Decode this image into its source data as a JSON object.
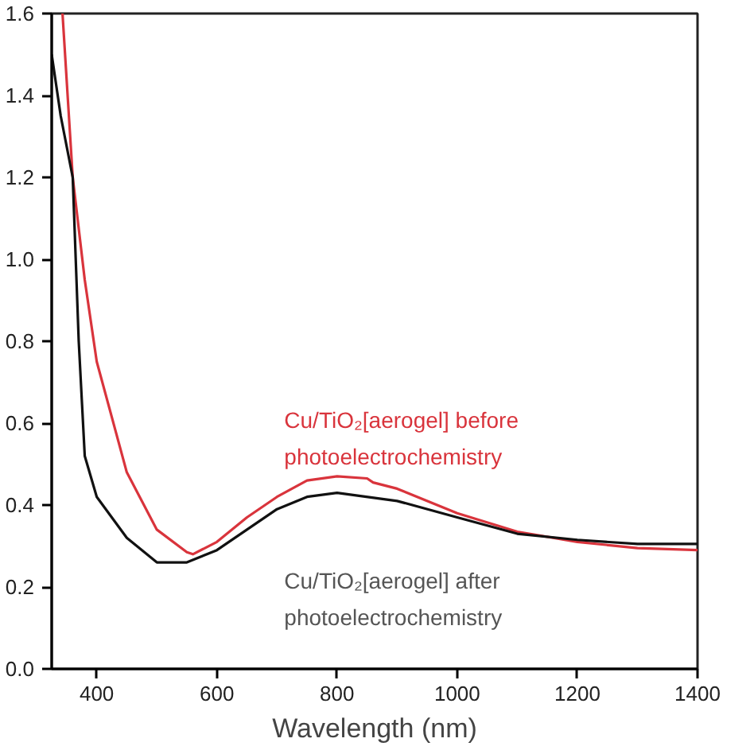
{
  "chart_data": {
    "type": "line",
    "xlabel": "Wavelength (nm)",
    "xlim": [
      325,
      1400
    ],
    "xticks": [
      400,
      600,
      800,
      1000,
      1200,
      1400
    ],
    "ylim": [
      0,
      1.6
    ],
    "yticks": [
      {
        "value": 0,
        "label": "0.0"
      },
      0.2,
      0.4,
      0.6,
      0.8,
      {
        "value": 1,
        "label": "1.0"
      },
      1.2,
      1.4,
      1.6
    ],
    "grid": false,
    "line_style": "solid",
    "series": [
      {
        "name": "Cu/TiO₂[aerogel] before photoelectrochemistry",
        "color": "#d9343c",
        "x": [
          343,
          360,
          380,
          400,
          450,
          500,
          550,
          560,
          600,
          650,
          700,
          750,
          800,
          850,
          860,
          900,
          1000,
          1100,
          1200,
          1300,
          1400
        ],
        "values": [
          1.6,
          1.2,
          0.95,
          0.75,
          0.48,
          0.34,
          0.285,
          0.28,
          0.31,
          0.37,
          0.42,
          0.46,
          0.47,
          0.465,
          0.455,
          0.44,
          0.38,
          0.335,
          0.31,
          0.295,
          0.29
        ]
      },
      {
        "name": "Cu/TiO₂[aerogel] after photoelectrochemistry",
        "color": "#111111",
        "x": [
          325,
          340,
          360,
          370,
          380,
          400,
          450,
          500,
          550,
          600,
          650,
          700,
          750,
          800,
          900,
          1000,
          1100,
          1200,
          1300,
          1400
        ],
        "values": [
          1.5,
          1.35,
          1.2,
          0.8,
          0.52,
          0.42,
          0.32,
          0.26,
          0.26,
          0.29,
          0.34,
          0.39,
          0.42,
          0.43,
          0.41,
          0.37,
          0.33,
          0.315,
          0.305,
          0.305
        ]
      }
    ]
  }
}
